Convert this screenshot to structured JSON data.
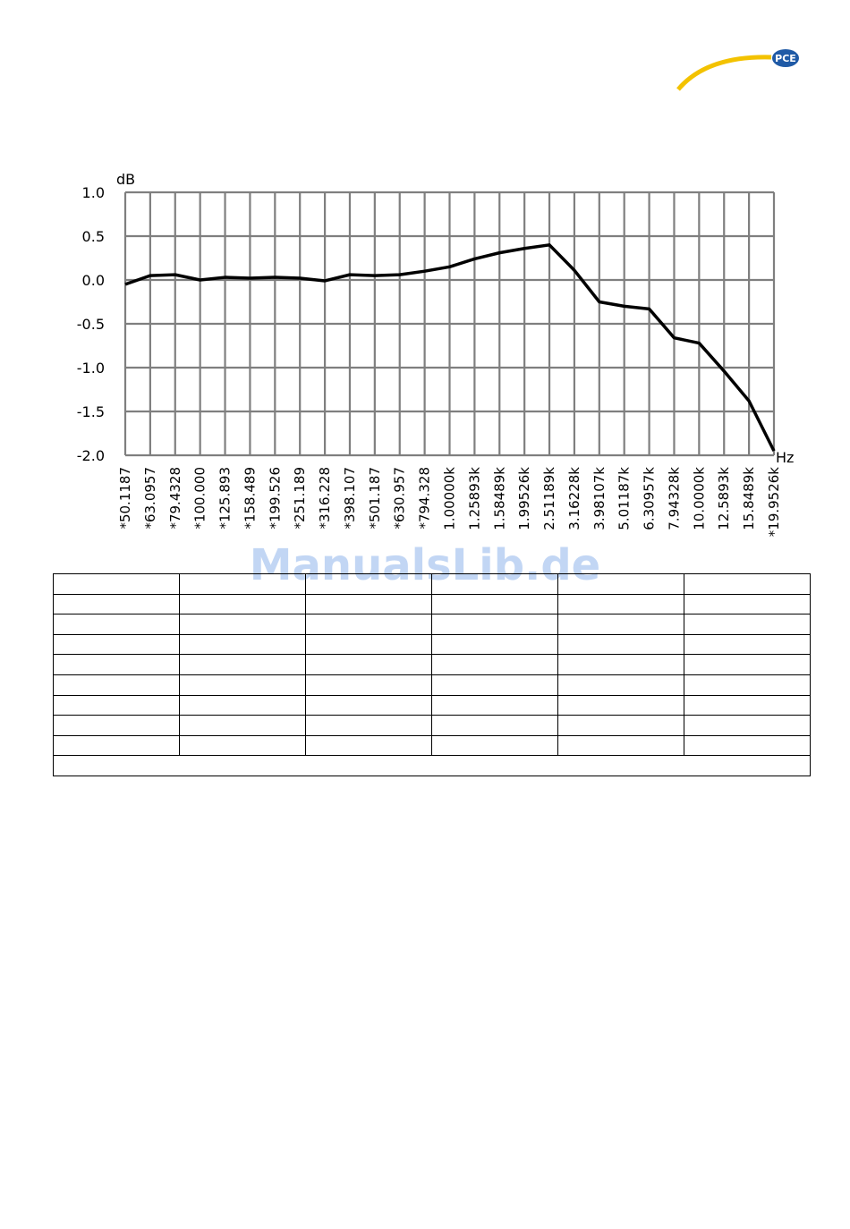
{
  "logo": "PCE",
  "watermark": "ManualsLib.de",
  "chart_data": {
    "type": "line",
    "y_label": "dB",
    "x_label": "Hz",
    "categories": [
      "*50.1187",
      "*63.0957",
      "*79.4328",
      "*100.000",
      "*125.893",
      "*158.489",
      "*199.526",
      "*251.189",
      "*316.228",
      "*398.107",
      "*501.187",
      "*630.957",
      "*794.328",
      "1.00000k",
      "1.25893k",
      "1.58489k",
      "1.99526k",
      "2.51189k",
      "3.16228k",
      "3.98107k",
      "5.01187k",
      "6.30957k",
      "7.94328k",
      "10.0000k",
      "12.5893k",
      "15.8489k",
      "*19.9526k"
    ],
    "values": [
      -0.05,
      0.05,
      0.06,
      0.0,
      0.03,
      0.02,
      0.03,
      0.02,
      -0.01,
      0.06,
      0.05,
      0.06,
      0.1,
      0.15,
      0.24,
      0.31,
      0.36,
      0.4,
      0.11,
      -0.25,
      -0.3,
      -0.33,
      -0.66,
      -0.72,
      -1.04,
      -1.38,
      -1.95
    ],
    "color": "#000000",
    "ylim": [
      -2,
      1
    ],
    "yticks": [
      {
        "value": 1,
        "label": "1.0"
      },
      {
        "value": 0.5,
        "label": "0.5"
      },
      {
        "value": 0,
        "label": "0.0"
      },
      {
        "value": -0.5,
        "label": "-0.5"
      },
      {
        "value": -1,
        "label": "-1.0"
      },
      {
        "value": -1.5,
        "label": "-1.5"
      },
      {
        "value": -2,
        "label": "-2.0"
      }
    ],
    "grid": true
  }
}
